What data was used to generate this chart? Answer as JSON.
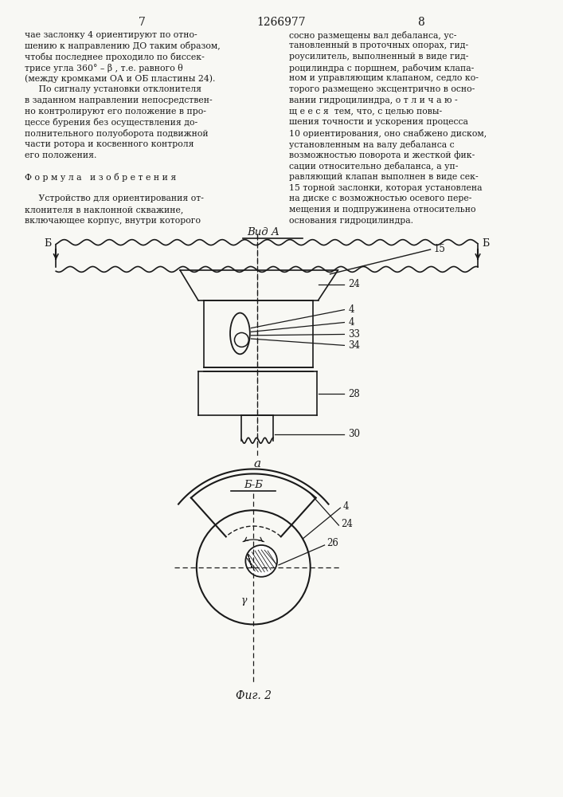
{
  "page_width": 7.07,
  "page_height": 10.0,
  "bg_color": "#f8f8f4",
  "text_color": "#1a1a1a",
  "line_color": "#1a1a1a",
  "header": {
    "left_num": "7",
    "center_num": "1266977",
    "right_num": "8"
  },
  "left_col_text": [
    "чае заслонку 4 ориентируют по отно-",
    "шению к направлению ДО таким образом,",
    "чтобы последнее проходило по биссек-",
    "трисе угла 360° – β , т.е. равного θ",
    "(между кромками ОА и ОБ пластины 24).",
    "     По сигналу установки отклонителя",
    "в заданном направлении непосредствен-",
    "но контролируют его положение в про-",
    "цессе бурения без осуществления до-",
    "полнительного полуоборота подвижной",
    "части ротора и косвенного контроля",
    "его положения.",
    "",
    "Ф о р м у л а   и з о б р е т е н и я",
    "",
    "     Устройство для ориентирования от-",
    "клонителя в наклонной скважине,",
    "включающее корпус, внутри которого"
  ],
  "right_col_text": [
    "сосно размещены вал дебаланса, ус-",
    "тановленный в проточных опорах, гид-",
    "роусилитель, выполненный в виде гид-",
    "роцилиндра с поршнем, рабочим клапа-",
    "ном и управляющим клапаном, седло ко-",
    "торого размещено эксцентрично в осно-",
    "вании гидроцилиндра, о т л и ч а ю -",
    "щ е е с я  тем, что, с целью повы-",
    "шения точности и ускорения процесса",
    "10 ориентирования, оно снабжено диском,",
    "установленным на валу дебаланса с",
    "возможностью поворота и жесткой фик-",
    "сации относительно дебаланса, а уп-",
    "равляющий клапан выполнен в виде сек-",
    "15 торной заслонки, которая установлена",
    "на диске с возможностью осевого пере-",
    "мещения и подпружинена относительно",
    "основания гидроцилиндра."
  ],
  "view_a_label": "Вид А",
  "view_bb_label": "Б-Б",
  "fig_label": "Фиг. 2"
}
